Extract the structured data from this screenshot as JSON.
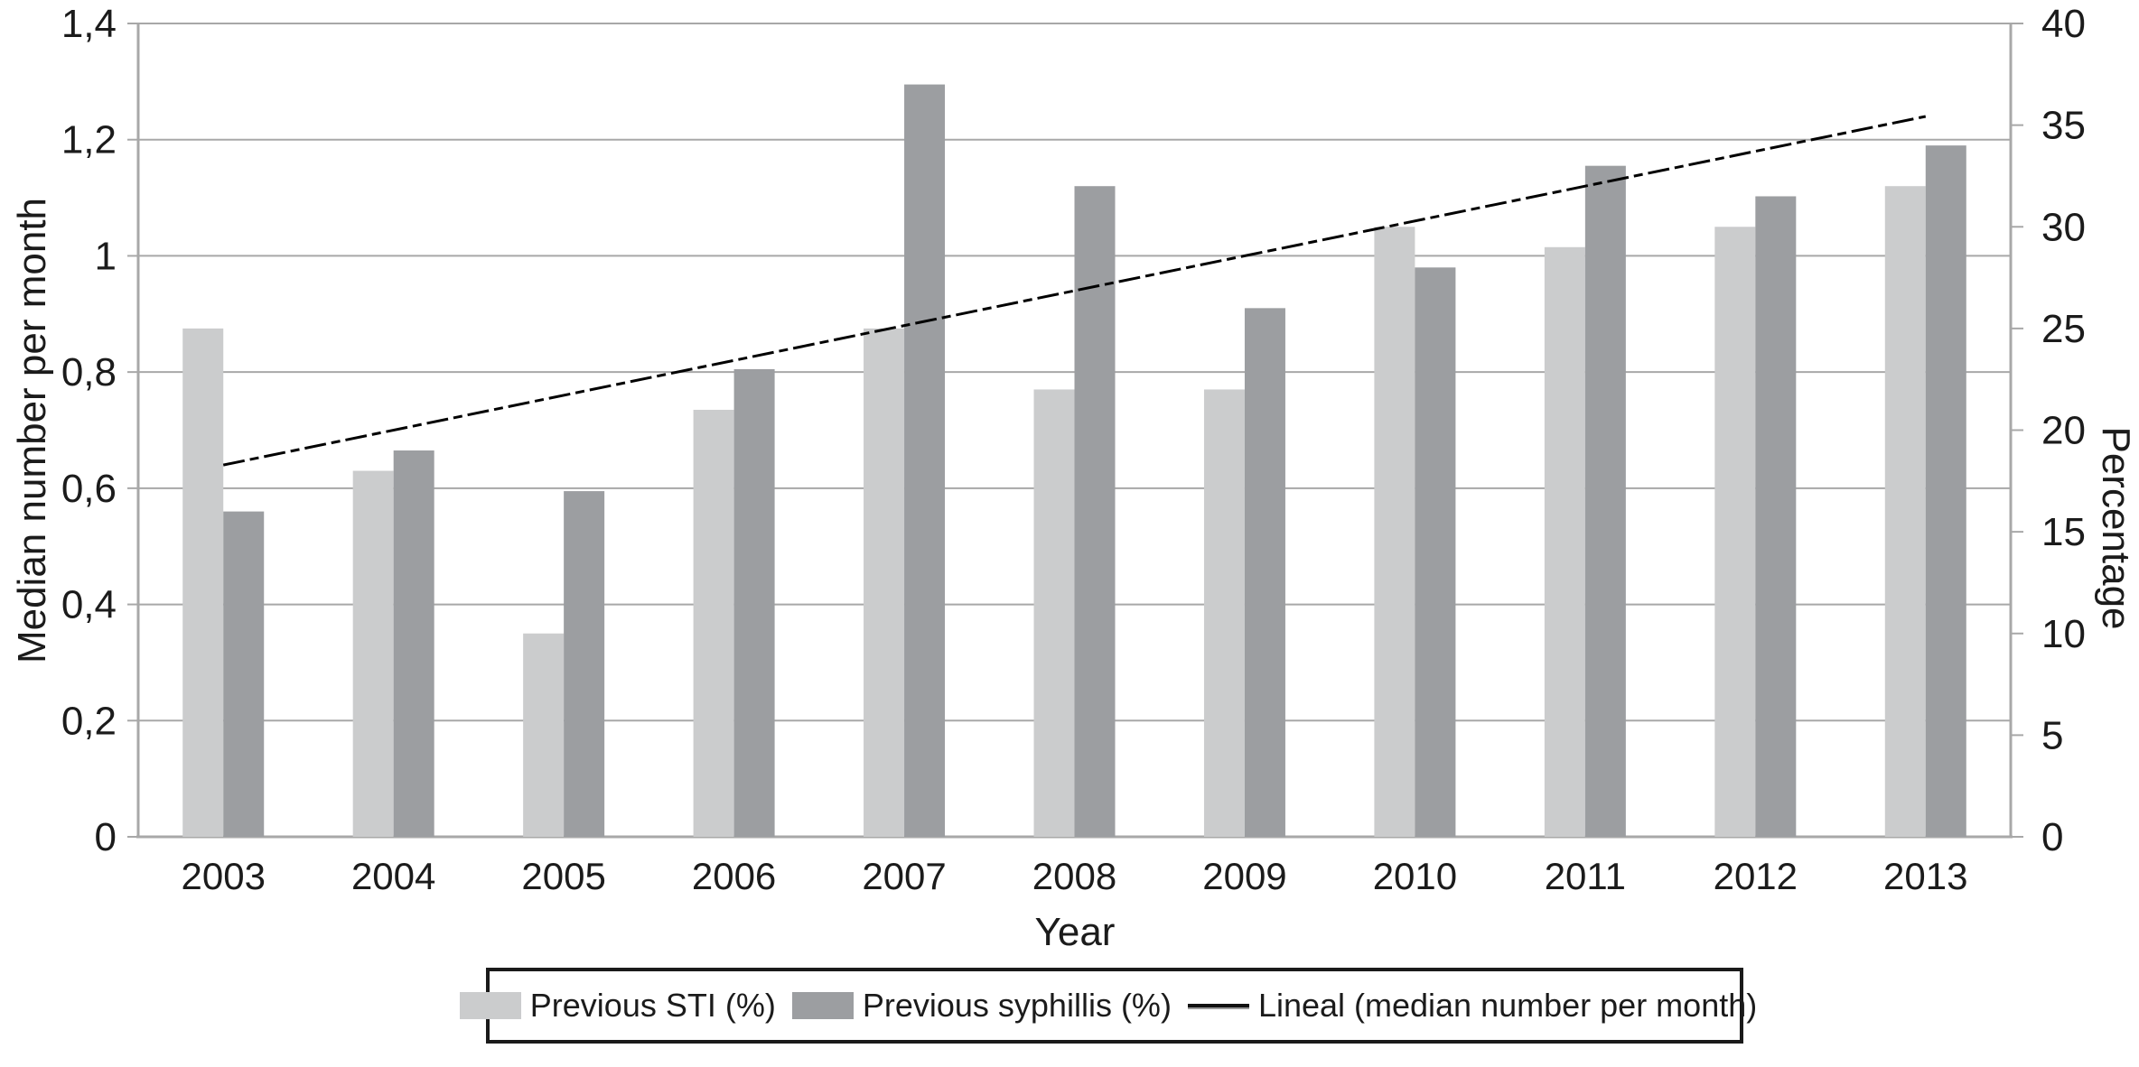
{
  "chart_data": {
    "type": "bar",
    "subtype": "grouped-bars-with-trend-line",
    "categories": [
      "2003",
      "2004",
      "2005",
      "2006",
      "2007",
      "2008",
      "2009",
      "2010",
      "2011",
      "2012",
      "2013"
    ],
    "series": [
      {
        "name": "Previous STI (%)",
        "type": "bar",
        "axis": "right",
        "color": "#cbcccd",
        "values": [
          25,
          18,
          10,
          21,
          25,
          22,
          22,
          30,
          29,
          30,
          32
        ]
      },
      {
        "name": "Previous syphillis (%)",
        "type": "bar",
        "axis": "right",
        "color": "#9c9ea1",
        "values": [
          16,
          19,
          17,
          23,
          37,
          32,
          26,
          28,
          33,
          31.5,
          34
        ]
      },
      {
        "name": "Lineal (median number per month)",
        "type": "line",
        "axis": "left",
        "color": "#000000",
        "x_start": "2003",
        "x_end": "2013",
        "y_start": 0.64,
        "y_end": 1.24
      }
    ],
    "left_axis": {
      "title": "Median number per month",
      "min": 0,
      "max": 1.4,
      "tick_values": [
        0,
        0.2,
        0.4,
        0.6,
        0.8,
        1,
        1.2,
        1.4
      ],
      "tick_labels": [
        "0",
        "0,2",
        "0,4",
        "0,6",
        "0,8",
        "1",
        "1,2",
        "1,4"
      ]
    },
    "right_axis": {
      "title": "Percentage",
      "min": 0,
      "max": 40,
      "tick_values": [
        0,
        5,
        10,
        15,
        20,
        25,
        30,
        35,
        40
      ],
      "tick_labels": [
        "0",
        "5",
        "10",
        "15",
        "20",
        "25",
        "30",
        "35",
        "40"
      ]
    },
    "x_axis": {
      "title": "Year"
    },
    "legend": {
      "position": "bottom",
      "entries": [
        "Previous STI (%)",
        "Previous syphillis (%)",
        "Lineal (median number per month)"
      ]
    },
    "grid": "horizontal",
    "colors": {
      "grid": "#a8a8a8",
      "axis": "#a8a8a8",
      "text": "#1b1b1b",
      "background": "#ffffff",
      "legend_border": "#1a1a1a",
      "trend_line": "#000000"
    }
  }
}
